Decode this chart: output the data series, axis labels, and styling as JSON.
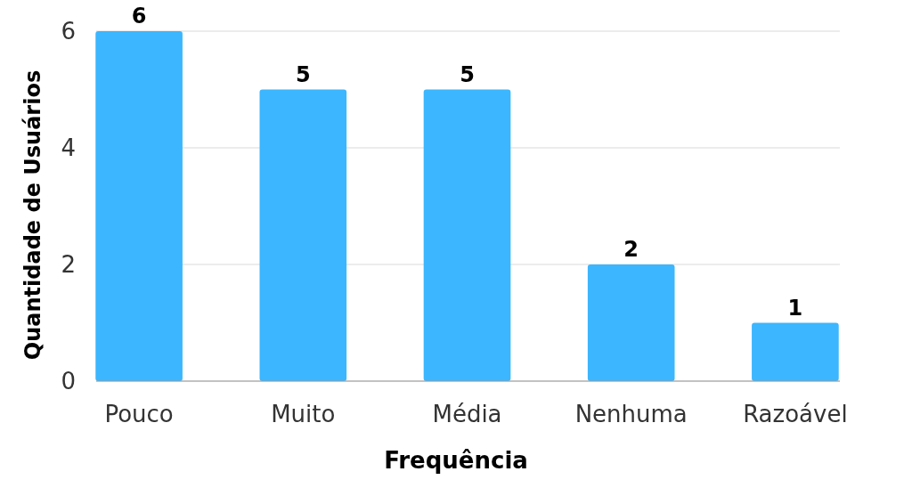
{
  "chart_data": {
    "type": "bar",
    "xlabel": "Frequência",
    "ylabel": "Quantidade de Usuários",
    "categories": [
      "Pouco",
      "Muito",
      "Média",
      "Nenhuma",
      "Razoável"
    ],
    "values": [
      6,
      5,
      5,
      2,
      1
    ],
    "color": "#3bb6ff",
    "ylim": [
      0,
      6
    ],
    "yticks": [
      0,
      2,
      4,
      6
    ],
    "grid": "y",
    "data_labels": true
  }
}
